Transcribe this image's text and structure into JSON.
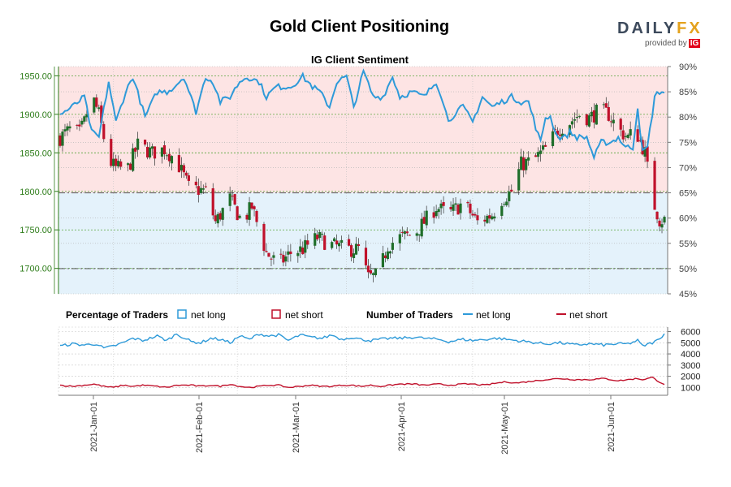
{
  "page": {
    "title": "Gold Client Positioning",
    "brand": {
      "name_main": "DAILY",
      "name_accent": "FX",
      "provided_by": "provided by",
      "provider": "IG"
    }
  },
  "chart_data": [
    {
      "type": "candlestick",
      "title": "IG Client Sentiment",
      "series_name": "Gold price",
      "ylim_left": [
        1667,
        1962
      ],
      "y_ticks_left": [
        1700,
        1750,
        1800,
        1850,
        1900,
        1950
      ],
      "y_tick_labels_left": [
        "1700.00",
        "1750.00",
        "1800.00",
        "1850.00",
        "1900.00",
        "1950.00"
      ],
      "ylim_right_pct": [
        45,
        90
      ],
      "y_ticks_right": [
        45,
        50,
        55,
        60,
        65,
        70,
        75,
        80,
        85,
        90
      ],
      "y_tick_labels_right": [
        "45%",
        "50%",
        "55%",
        "60%",
        "65%",
        "70%",
        "75%",
        "80%",
        "85%",
        "90%"
      ],
      "reference_lines_pct": [
        50,
        65
      ],
      "net_long_pct_anchors": [
        [
          0,
          80.5
        ],
        [
          5,
          82
        ],
        [
          10,
          84
        ],
        [
          13,
          77
        ],
        [
          16,
          76
        ],
        [
          20,
          87
        ],
        [
          23,
          79
        ],
        [
          27,
          85
        ],
        [
          30,
          88
        ],
        [
          35,
          80
        ],
        [
          40,
          85
        ],
        [
          44,
          85
        ],
        [
          47,
          86
        ],
        [
          51,
          88
        ],
        [
          56,
          81
        ],
        [
          60,
          88
        ],
        [
          63,
          87
        ],
        [
          66,
          83
        ],
        [
          70,
          84
        ],
        [
          74,
          87
        ],
        [
          77,
          88
        ],
        [
          82,
          87
        ],
        [
          85,
          84
        ],
        [
          89,
          86
        ],
        [
          95,
          86
        ],
        [
          100,
          88
        ],
        [
          104,
          86
        ],
        [
          107,
          85
        ],
        [
          111,
          82
        ],
        [
          114,
          87
        ],
        [
          118,
          88
        ],
        [
          121,
          82
        ],
        [
          125,
          89
        ],
        [
          129,
          84
        ],
        [
          133,
          84
        ],
        [
          137,
          88
        ],
        [
          140,
          84
        ],
        [
          145,
          85
        ],
        [
          150,
          84
        ],
        [
          155,
          87
        ],
        [
          158,
          83
        ],
        [
          160,
          79
        ],
        [
          163,
          81
        ],
        [
          166,
          82
        ],
        [
          170,
          79
        ],
        [
          174,
          84
        ],
        [
          178,
          82
        ],
        [
          182,
          83
        ],
        [
          186,
          84
        ],
        [
          190,
          83
        ],
        [
          193,
          83
        ],
        [
          196,
          78
        ],
        [
          198,
          75
        ],
        [
          200,
          80
        ],
        [
          202,
          80
        ],
        [
          205,
          76
        ],
        [
          208,
          76
        ],
        [
          210,
          77
        ],
        [
          213,
          76
        ],
        [
          217,
          76
        ],
        [
          220,
          72
        ],
        [
          223,
          75
        ],
        [
          227,
          75
        ],
        [
          230,
          76
        ],
        [
          233,
          74
        ],
        [
          236,
          74
        ],
        [
          238,
          82
        ],
        [
          240,
          73
        ],
        [
          242,
          74
        ],
        [
          245,
          84
        ],
        [
          247,
          85
        ],
        [
          249,
          85
        ]
      ],
      "net_long_pct_scale": "right axis, 0-100%",
      "candles_anchor_close": [
        [
          0,
          1870
        ],
        [
          4,
          1880
        ],
        [
          8,
          1875
        ],
        [
          10,
          1890
        ],
        [
          13,
          1925
        ],
        [
          16,
          1900
        ],
        [
          20,
          1840
        ],
        [
          23,
          1830
        ],
        [
          28,
          1830
        ],
        [
          32,
          1860
        ],
        [
          38,
          1850
        ],
        [
          43,
          1855
        ],
        [
          48,
          1840
        ],
        [
          53,
          1805
        ],
        [
          60,
          1800
        ],
        [
          64,
          1760
        ],
        [
          70,
          1790
        ],
        [
          75,
          1760
        ],
        [
          79,
          1780
        ],
        [
          85,
          1720
        ],
        [
          90,
          1705
        ],
        [
          95,
          1720
        ],
        [
          100,
          1725
        ],
        [
          106,
          1740
        ],
        [
          112,
          1730
        ],
        [
          118,
          1725
        ],
        [
          123,
          1725
        ],
        [
          127,
          1688
        ],
        [
          131,
          1690
        ],
        [
          135,
          1730
        ],
        [
          140,
          1740
        ],
        [
          146,
          1745
        ],
        [
          150,
          1760
        ],
        [
          155,
          1780
        ],
        [
          160,
          1770
        ],
        [
          166,
          1785
        ],
        [
          172,
          1760
        ],
        [
          178,
          1770
        ],
        [
          182,
          1790
        ],
        [
          186,
          1800
        ],
        [
          190,
          1835
        ],
        [
          195,
          1840
        ],
        [
          200,
          1855
        ],
        [
          205,
          1880
        ],
        [
          210,
          1890
        ],
        [
          214,
          1900
        ],
        [
          218,
          1895
        ],
        [
          222,
          1905
        ],
        [
          226,
          1900
        ],
        [
          230,
          1880
        ],
        [
          234,
          1870
        ],
        [
          237,
          1880
        ],
        [
          241,
          1850
        ],
        [
          244,
          1790
        ],
        [
          247,
          1763
        ]
      ],
      "x_tick_labels": [
        "2021-Jan-01",
        "2021-Feb-01",
        "2021-Mar-01",
        "2021-Apr-01",
        "2021-May-01",
        "2021-Jun-01"
      ],
      "background_zones": [
        {
          "range_pct": [
            65,
            90
          ],
          "color": "#fde4e4"
        },
        {
          "range_pct": [
            45,
            65
          ],
          "color": "#e4f2fb"
        }
      ]
    },
    {
      "type": "line",
      "title": "Number of Traders",
      "series": [
        {
          "name": "net long",
          "color": "#2e9ad9",
          "anchors": [
            [
              0,
              4700
            ],
            [
              5,
              4900
            ],
            [
              10,
              4800
            ],
            [
              15,
              4900
            ],
            [
              18,
              4500
            ],
            [
              22,
              4700
            ],
            [
              26,
              5000
            ],
            [
              30,
              5400
            ],
            [
              34,
              5200
            ],
            [
              40,
              5600
            ],
            [
              44,
              5200
            ],
            [
              48,
              5800
            ],
            [
              54,
              5100
            ],
            [
              58,
              5000
            ],
            [
              62,
              5400
            ],
            [
              66,
              5300
            ],
            [
              70,
              5000
            ],
            [
              74,
              5600
            ],
            [
              78,
              5300
            ],
            [
              82,
              5800
            ],
            [
              86,
              5600
            ],
            [
              90,
              5700
            ],
            [
              94,
              5200
            ],
            [
              99,
              5700
            ],
            [
              103,
              5500
            ],
            [
              108,
              5400
            ],
            [
              112,
              5700
            ],
            [
              116,
              5300
            ],
            [
              120,
              5500
            ],
            [
              124,
              5300
            ],
            [
              128,
              5200
            ],
            [
              132,
              5300
            ],
            [
              136,
              5400
            ],
            [
              140,
              5400
            ],
            [
              146,
              5500
            ],
            [
              150,
              5400
            ],
            [
              156,
              5300
            ],
            [
              160,
              5100
            ],
            [
              166,
              5300
            ],
            [
              170,
              5200
            ],
            [
              175,
              5300
            ],
            [
              180,
              5400
            ],
            [
              184,
              5300
            ],
            [
              188,
              5200
            ],
            [
              192,
              5100
            ],
            [
              196,
              5000
            ],
            [
              200,
              4900
            ],
            [
              206,
              5000
            ],
            [
              212,
              4800
            ],
            [
              218,
              4900
            ],
            [
              224,
              4800
            ],
            [
              230,
              4900
            ],
            [
              234,
              4900
            ],
            [
              238,
              5200
            ],
            [
              240,
              4700
            ],
            [
              244,
              5000
            ],
            [
              247,
              5300
            ],
            [
              249,
              5900
            ]
          ]
        },
        {
          "name": "net short",
          "color": "#c0112b",
          "anchors": [
            [
              0,
              1200
            ],
            [
              5,
              1100
            ],
            [
              10,
              1200
            ],
            [
              14,
              1300
            ],
            [
              18,
              1100
            ],
            [
              22,
              1000
            ],
            [
              26,
              1200
            ],
            [
              30,
              1100
            ],
            [
              34,
              1200
            ],
            [
              40,
              1100
            ],
            [
              44,
              1000
            ],
            [
              48,
              1200
            ],
            [
              54,
              1200
            ],
            [
              58,
              1100
            ],
            [
              62,
              1200
            ],
            [
              66,
              1100
            ],
            [
              70,
              1300
            ],
            [
              74,
              1100
            ],
            [
              78,
              1000
            ],
            [
              82,
              1100
            ],
            [
              86,
              1200
            ],
            [
              90,
              1200
            ],
            [
              94,
              1000
            ],
            [
              99,
              1100
            ],
            [
              103,
              1200
            ],
            [
              108,
              1100
            ],
            [
              112,
              1100
            ],
            [
              116,
              1200
            ],
            [
              120,
              1200
            ],
            [
              124,
              1100
            ],
            [
              128,
              1200
            ],
            [
              132,
              1100
            ],
            [
              136,
              1200
            ],
            [
              140,
              1300
            ],
            [
              146,
              1300
            ],
            [
              150,
              1200
            ],
            [
              156,
              1300
            ],
            [
              160,
              1200
            ],
            [
              166,
              1300
            ],
            [
              170,
              1300
            ],
            [
              175,
              1200
            ],
            [
              180,
              1400
            ],
            [
              184,
              1500
            ],
            [
              188,
              1400
            ],
            [
              192,
              1500
            ],
            [
              196,
              1600
            ],
            [
              200,
              1700
            ],
            [
              206,
              1800
            ],
            [
              212,
              1700
            ],
            [
              218,
              1700
            ],
            [
              224,
              1800
            ],
            [
              230,
              1600
            ],
            [
              234,
              1700
            ],
            [
              238,
              1800
            ],
            [
              240,
              1700
            ],
            [
              244,
              1900
            ],
            [
              247,
              1500
            ],
            [
              249,
              1300
            ]
          ]
        }
      ],
      "ylim": [
        300,
        6400
      ],
      "y_ticks": [
        1000,
        2000,
        3000,
        4000,
        5000,
        6000
      ],
      "y_tick_labels": [
        "1000",
        "2000",
        "3000",
        "4000",
        "5000",
        "6000"
      ],
      "x_tick_labels": [
        "2021-Jan-01",
        "2021-Feb-01",
        "2021-Mar-01",
        "2021-Apr-01",
        "2021-May-01",
        "2021-Jun-01"
      ]
    }
  ],
  "legend": {
    "pct_title": "Percentage of Traders",
    "pct_long": "net long",
    "pct_short": "net short",
    "num_title": "Number of Traders",
    "num_long": "net long",
    "num_short": "net short"
  },
  "colors": {
    "long": "#2e9ad9",
    "short": "#c0112b",
    "up": "#1f6e2a",
    "down": "#c0112b",
    "axis_green": "#2e7d1a"
  }
}
